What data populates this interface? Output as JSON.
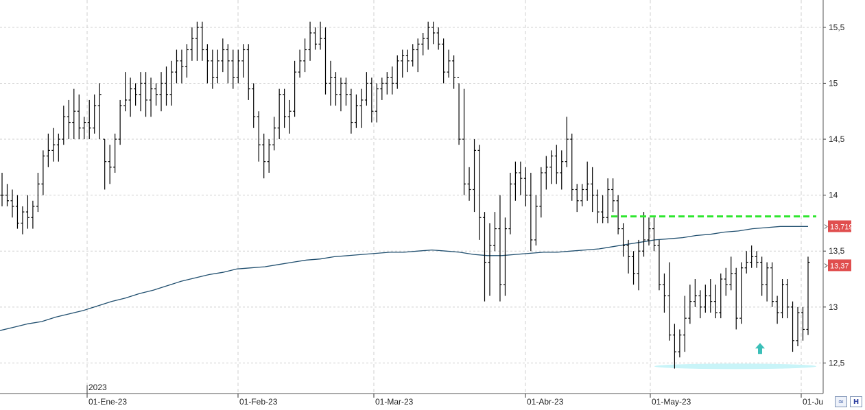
{
  "chart_data": {
    "type": "ohlc",
    "x_ticks": [
      "01-Ene-23",
      "01-Feb-23",
      "01-Mar-23",
      "01-Abr-23",
      "01-May-23",
      "01-Ju"
    ],
    "year_label": "2023",
    "y_ticks": [
      "15,5",
      "15",
      "14,5",
      "14",
      "13,5",
      "13",
      "12,5"
    ],
    "ylim": [
      12.38,
      15.64
    ],
    "grid": true,
    "bars": [
      [
        14.0,
        14.2,
        13.9,
        14.0
      ],
      [
        14.0,
        14.1,
        13.9,
        13.95
      ],
      [
        13.95,
        14.05,
        13.8,
        13.9
      ],
      [
        13.9,
        14.0,
        13.7,
        13.75
      ],
      [
        13.75,
        13.9,
        13.65,
        13.85
      ],
      [
        13.85,
        14.0,
        13.7,
        13.8
      ],
      [
        13.8,
        13.95,
        13.7,
        13.9
      ],
      [
        13.9,
        14.2,
        13.85,
        14.1
      ],
      [
        14.1,
        14.4,
        14.0,
        14.35
      ],
      [
        14.35,
        14.55,
        14.25,
        14.4
      ],
      [
        14.4,
        14.6,
        14.3,
        14.45
      ],
      [
        14.45,
        14.55,
        14.3,
        14.5
      ],
      [
        14.5,
        14.8,
        14.45,
        14.7
      ],
      [
        14.7,
        14.85,
        14.5,
        14.65
      ],
      [
        14.65,
        14.95,
        14.5,
        14.75
      ],
      [
        14.75,
        14.9,
        14.5,
        14.6
      ],
      [
        14.6,
        14.7,
        14.5,
        14.65
      ],
      [
        14.65,
        14.85,
        14.5,
        14.6
      ],
      [
        14.6,
        14.9,
        14.55,
        14.8
      ],
      [
        14.8,
        15.0,
        14.5,
        14.9
      ],
      [
        14.5,
        14.5,
        14.05,
        14.3
      ],
      [
        14.3,
        14.45,
        14.1,
        14.25
      ],
      [
        14.25,
        14.55,
        14.2,
        14.5
      ],
      [
        14.5,
        14.85,
        14.45,
        14.8
      ],
      [
        14.8,
        15.1,
        14.75,
        14.85
      ],
      [
        14.85,
        15.05,
        14.7,
        14.95
      ],
      [
        14.95,
        15.0,
        14.8,
        14.9
      ],
      [
        14.9,
        15.1,
        14.75,
        15.0
      ],
      [
        15.0,
        15.1,
        14.7,
        14.85
      ],
      [
        14.85,
        15.05,
        14.7,
        14.95
      ],
      [
        14.95,
        15.0,
        14.8,
        14.9
      ],
      [
        14.9,
        15.1,
        14.75,
        15.0
      ],
      [
        15.0,
        15.15,
        14.8,
        14.9
      ],
      [
        14.9,
        15.2,
        14.8,
        15.1
      ],
      [
        15.1,
        15.3,
        15.0,
        15.2
      ],
      [
        15.2,
        15.3,
        15.0,
        15.15
      ],
      [
        15.15,
        15.35,
        15.05,
        15.3
      ],
      [
        15.3,
        15.5,
        15.2,
        15.4
      ],
      [
        15.4,
        15.55,
        15.2,
        15.5
      ],
      [
        15.5,
        15.55,
        15.2,
        15.3
      ],
      [
        15.3,
        15.35,
        15.0,
        15.2
      ],
      [
        15.2,
        15.3,
        14.95,
        15.05
      ],
      [
        15.05,
        15.3,
        15.0,
        15.2
      ],
      [
        15.2,
        15.4,
        15.1,
        15.3
      ],
      [
        15.3,
        15.35,
        15.0,
        15.2
      ],
      [
        15.2,
        15.3,
        14.95,
        15.05
      ],
      [
        15.05,
        15.3,
        15.0,
        15.2
      ],
      [
        15.2,
        15.35,
        15.05,
        15.3
      ],
      [
        15.3,
        15.35,
        14.85,
        14.95
      ],
      [
        14.95,
        15.0,
        14.6,
        14.7
      ],
      [
        14.7,
        14.75,
        14.3,
        14.45
      ],
      [
        14.45,
        14.55,
        14.15,
        14.3
      ],
      [
        14.3,
        14.5,
        14.2,
        14.45
      ],
      [
        14.45,
        14.7,
        14.4,
        14.6
      ],
      [
        14.6,
        14.95,
        14.5,
        14.9
      ],
      [
        14.9,
        14.95,
        14.6,
        14.7
      ],
      [
        14.7,
        14.85,
        14.55,
        14.75
      ],
      [
        14.75,
        15.2,
        14.7,
        15.1
      ],
      [
        15.1,
        15.3,
        15.05,
        15.2
      ],
      [
        15.2,
        15.4,
        15.1,
        15.3
      ],
      [
        15.3,
        15.55,
        15.2,
        15.45
      ],
      [
        15.45,
        15.5,
        15.3,
        15.35
      ],
      [
        15.35,
        15.55,
        15.3,
        15.4
      ],
      [
        15.4,
        15.5,
        14.9,
        15.0
      ],
      [
        15.0,
        15.2,
        14.8,
        15.05
      ],
      [
        15.05,
        15.1,
        14.8,
        14.9
      ],
      [
        14.9,
        15.05,
        14.75,
        15.0
      ],
      [
        15.0,
        15.05,
        14.8,
        14.9
      ],
      [
        14.9,
        14.95,
        14.55,
        14.65
      ],
      [
        14.65,
        14.9,
        14.6,
        14.8
      ],
      [
        14.8,
        14.95,
        14.6,
        14.85
      ],
      [
        14.85,
        15.1,
        14.8,
        15.0
      ],
      [
        15.0,
        15.05,
        14.65,
        14.75
      ],
      [
        14.75,
        15.0,
        14.65,
        14.95
      ],
      [
        14.95,
        15.05,
        14.85,
        15.0
      ],
      [
        15.0,
        15.1,
        14.9,
        15.05
      ],
      [
        15.05,
        15.15,
        14.9,
        15.0
      ],
      [
        15.0,
        15.25,
        14.95,
        15.2
      ],
      [
        15.2,
        15.3,
        15.05,
        15.25
      ],
      [
        15.25,
        15.3,
        15.1,
        15.2
      ],
      [
        15.2,
        15.35,
        15.15,
        15.3
      ],
      [
        15.3,
        15.4,
        15.1,
        15.35
      ],
      [
        15.35,
        15.45,
        15.25,
        15.4
      ],
      [
        15.4,
        15.55,
        15.3,
        15.5
      ],
      [
        15.5,
        15.55,
        15.35,
        15.45
      ],
      [
        15.45,
        15.5,
        15.3,
        15.35
      ],
      [
        15.35,
        15.4,
        15.0,
        15.1
      ],
      [
        15.1,
        15.3,
        15.05,
        15.2
      ],
      [
        15.2,
        15.25,
        14.95,
        15.05
      ],
      [
        15.05,
        15.0,
        14.45,
        14.5
      ],
      [
        14.5,
        14.95,
        14.0,
        14.1
      ],
      [
        14.1,
        14.25,
        13.95,
        14.05
      ],
      [
        14.05,
        14.5,
        13.85,
        14.4
      ],
      [
        14.4,
        14.45,
        13.6,
        13.8
      ],
      [
        13.8,
        13.85,
        13.05,
        13.4
      ],
      [
        13.4,
        13.75,
        13.1,
        13.55
      ],
      [
        13.55,
        13.85,
        13.5,
        13.7
      ],
      [
        13.7,
        14.0,
        13.05,
        13.2
      ],
      [
        13.2,
        13.8,
        13.1,
        13.7
      ],
      [
        13.7,
        14.2,
        13.65,
        14.1
      ],
      [
        14.1,
        14.3,
        13.95,
        14.2
      ],
      [
        14.2,
        14.3,
        14.0,
        14.15
      ],
      [
        14.15,
        14.25,
        13.9,
        14.0
      ],
      [
        14.0,
        14.2,
        13.5,
        13.6
      ],
      [
        13.6,
        14.0,
        13.55,
        13.9
      ],
      [
        13.9,
        14.25,
        13.8,
        14.2
      ],
      [
        14.2,
        14.35,
        14.05,
        14.25
      ],
      [
        14.25,
        14.4,
        14.1,
        14.35
      ],
      [
        14.35,
        14.45,
        14.1,
        14.2
      ],
      [
        14.2,
        14.4,
        14.05,
        14.3
      ],
      [
        14.3,
        14.7,
        14.25,
        14.5
      ],
      [
        14.5,
        14.55,
        13.95,
        14.05
      ],
      [
        14.05,
        14.1,
        13.85,
        13.95
      ],
      [
        13.95,
        14.1,
        13.9,
        14.05
      ],
      [
        14.05,
        14.3,
        13.95,
        14.1
      ],
      [
        14.1,
        14.25,
        13.85,
        14.0
      ],
      [
        14.0,
        14.05,
        13.75,
        13.85
      ],
      [
        13.85,
        14.0,
        13.75,
        13.8
      ],
      [
        13.8,
        14.15,
        13.75,
        14.05
      ],
      [
        14.05,
        14.15,
        13.85,
        13.95
      ],
      [
        13.95,
        14.0,
        13.65,
        13.7
      ],
      [
        13.7,
        13.75,
        13.45,
        13.55
      ],
      [
        13.55,
        13.6,
        13.3,
        13.45
      ],
      [
        13.45,
        13.5,
        13.2,
        13.3
      ],
      [
        13.3,
        13.6,
        13.15,
        13.5
      ],
      [
        13.5,
        13.85,
        13.45,
        13.6
      ],
      [
        13.6,
        13.8,
        13.55,
        13.7
      ],
      [
        13.7,
        13.8,
        13.5,
        13.55
      ],
      [
        13.55,
        13.6,
        13.15,
        13.2
      ],
      [
        13.2,
        13.3,
        12.95,
        13.1
      ],
      [
        13.1,
        13.4,
        12.7,
        12.75
      ],
      [
        12.75,
        12.85,
        12.45,
        12.6
      ],
      [
        12.6,
        12.8,
        12.55,
        12.75
      ],
      [
        12.75,
        13.1,
        12.6,
        12.9
      ],
      [
        12.9,
        13.2,
        12.85,
        13.05
      ],
      [
        13.05,
        13.25,
        13.0,
        13.1
      ],
      [
        13.1,
        13.15,
        12.9,
        13.0
      ],
      [
        13.0,
        13.2,
        12.95,
        13.1
      ],
      [
        13.1,
        13.25,
        12.95,
        13.05
      ],
      [
        13.05,
        13.2,
        12.9,
        12.95
      ],
      [
        12.95,
        13.3,
        12.9,
        13.25
      ],
      [
        13.25,
        13.35,
        13.1,
        13.2
      ],
      [
        13.2,
        13.45,
        13.15,
        13.3
      ],
      [
        13.3,
        13.35,
        12.8,
        12.9
      ],
      [
        12.9,
        13.4,
        12.85,
        13.35
      ],
      [
        13.35,
        13.5,
        13.3,
        13.4
      ],
      [
        13.4,
        13.55,
        13.35,
        13.45
      ],
      [
        13.45,
        13.5,
        13.35,
        13.4
      ],
      [
        13.4,
        13.45,
        13.1,
        13.2
      ],
      [
        13.2,
        13.4,
        13.05,
        13.35
      ],
      [
        13.35,
        13.4,
        13.0,
        13.05
      ],
      [
        13.05,
        13.1,
        12.85,
        12.95
      ],
      [
        12.95,
        13.25,
        12.9,
        13.2
      ],
      [
        13.2,
        13.25,
        12.9,
        13.0
      ],
      [
        13.0,
        13.05,
        12.6,
        12.7
      ],
      [
        12.7,
        13.0,
        12.65,
        12.95
      ],
      [
        12.95,
        13.0,
        12.7,
        12.8
      ],
      [
        12.8,
        13.45,
        12.75,
        13.4
      ]
    ],
    "ma": [
      12.79,
      12.82,
      12.85,
      12.87,
      12.91,
      12.94,
      12.97,
      13.01,
      13.05,
      13.08,
      13.12,
      13.15,
      13.19,
      13.23,
      13.26,
      13.29,
      13.31,
      13.34,
      13.35,
      13.36,
      13.38,
      13.4,
      13.42,
      13.43,
      13.45,
      13.46,
      13.47,
      13.48,
      13.49,
      13.49,
      13.5,
      13.51,
      13.5,
      13.49,
      13.47,
      13.46,
      13.46,
      13.47,
      13.48,
      13.49,
      13.49,
      13.5,
      13.51,
      13.52,
      13.54,
      13.56,
      13.58,
      13.6,
      13.61,
      13.62,
      13.64,
      13.65,
      13.67,
      13.68,
      13.7,
      13.71,
      13.72,
      13.72,
      13.72
    ],
    "resistance_level": 13.81,
    "support_level": 12.47,
    "signal_arrow_level": 12.63,
    "price_tags": [
      {
        "label": "13,719",
        "value": 13.719,
        "color": "#e04e4e"
      },
      {
        "label": "13,37",
        "value": 13.37,
        "color": "#e04e4e"
      }
    ],
    "colors": {
      "bars": "#000000",
      "ma": "#1f4e6e",
      "resistance": "#2ee62e",
      "support": "#c8f4f8",
      "arrow": "#3bbfb8",
      "grid": "#cfcfcf"
    }
  },
  "toolbar": {
    "btn1_icon": "trend-icon",
    "btn2_icon": "h-icon",
    "btn2_text": "H"
  }
}
